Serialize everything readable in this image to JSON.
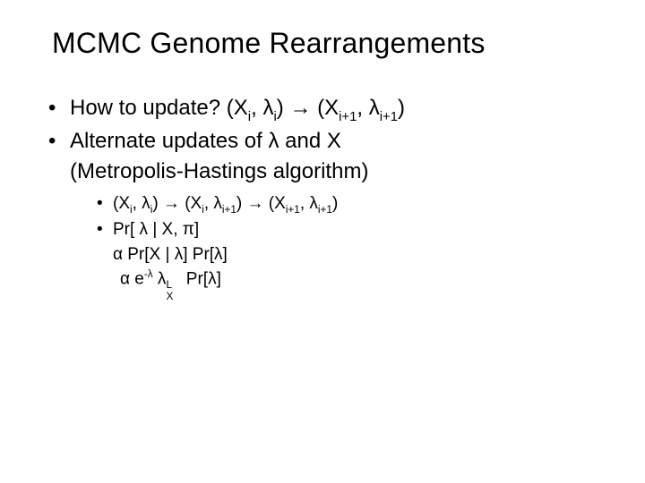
{
  "title": "MCMC Genome Rearrangements",
  "bullets": {
    "b1_prefix": "How to update?  (X",
    "b1_sub1": "i",
    "b1_mid1": ", λ",
    "b1_sub2": "i",
    "b1_mid2": ") ",
    "b1_arrow": "→",
    "b1_mid3": " (X",
    "b1_sub3": "i+1",
    "b1_mid4": ", λ",
    "b1_sub4": "i+1",
    "b1_end": ")",
    "b2": "Alternate updates of λ and X",
    "b2_cont": "(Metropolis-Hastings algorithm)"
  },
  "sub": {
    "s1_a": "(X",
    "s1_sub1": "i",
    "s1_b": ", λ",
    "s1_sub2": "i",
    "s1_c": ") ",
    "s1_arrow1": "→",
    "s1_d": " (X",
    "s1_sub3": "i",
    "s1_e": ", λ",
    "s1_sub4": "i+1",
    "s1_f": ") ",
    "s1_arrow2": "→",
    "s1_g": " (X",
    "s1_sub5": "i+1",
    "s1_h": ", λ",
    "s1_sub6": "i+1",
    "s1_i": ")",
    "s2": "Pr[ λ | X, π]",
    "s2_cont": "α Pr[X | λ] Pr[λ]",
    "s3_a": "α e",
    "s3_sup1": "-λ",
    "s3_b": " λ",
    "s3_sup2": "L",
    "s3_sub2": "X",
    "s3_c": " Pr[λ]"
  }
}
